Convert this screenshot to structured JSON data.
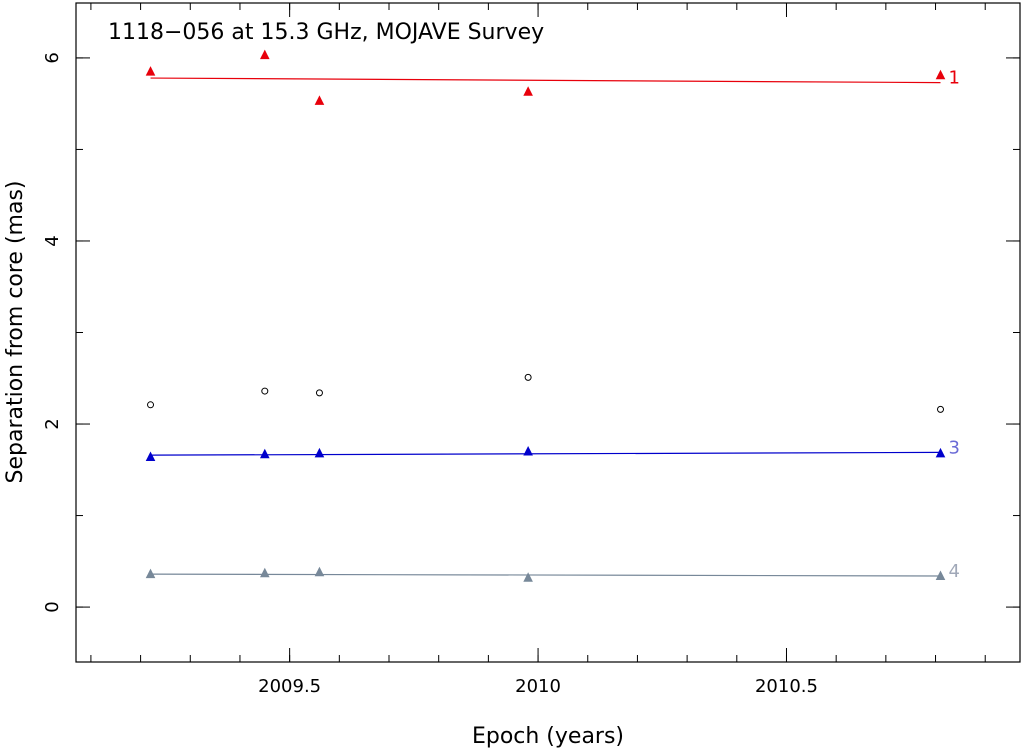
{
  "chart_data": {
    "type": "scatter",
    "title": "1118−056 at 15.3 GHz, MOJAVE Survey",
    "xlabel": "Epoch (years)",
    "ylabel": "Separation from core (mas)",
    "xlim": [
      2009.07,
      2010.97
    ],
    "ylim": [
      -0.6,
      6.6
    ],
    "x_major_ticks": [
      2009.5,
      2010,
      2010.5
    ],
    "x_tick_labels": [
      "2009.5",
      "2010",
      "2010.5"
    ],
    "x_minor_step": 0.1,
    "y_major_ticks": [
      0,
      2,
      4,
      6
    ],
    "y_tick_labels": [
      "0",
      "2",
      "4",
      "6"
    ],
    "y_minor_step": 1,
    "grid": false,
    "series": [
      {
        "name": "1",
        "marker": "triangle",
        "color": "#e8000b",
        "x": [
          2009.22,
          2009.45,
          2009.56,
          2009.98,
          2010.81
        ],
        "y": [
          5.85,
          6.03,
          5.53,
          5.63,
          5.81
        ],
        "fit": [
          [
            2009.22,
            5.78
          ],
          [
            2010.81,
            5.73
          ]
        ]
      },
      {
        "name": "3",
        "marker": "triangle",
        "color": "#0000cc",
        "label_color": "#6b6bd6",
        "x": [
          2009.22,
          2009.45,
          2009.56,
          2009.98,
          2010.81
        ],
        "y": [
          1.64,
          1.67,
          1.68,
          1.7,
          1.68
        ],
        "fit": [
          [
            2009.22,
            1.66
          ],
          [
            2010.81,
            1.69
          ]
        ]
      },
      {
        "name": "4",
        "marker": "triangle",
        "color": "#778899",
        "label_color": "#a0a8b8",
        "x": [
          2009.22,
          2009.45,
          2009.56,
          2009.98,
          2010.81
        ],
        "y": [
          0.36,
          0.37,
          0.38,
          0.32,
          0.34
        ],
        "fit": [
          [
            2009.22,
            0.36
          ],
          [
            2010.81,
            0.34
          ]
        ]
      },
      {
        "marker": "circle",
        "color": "#000000",
        "x": [
          2009.22,
          2009.45,
          2009.56,
          2009.98,
          2010.81
        ],
        "y": [
          2.21,
          2.36,
          2.34,
          2.51,
          2.16
        ]
      }
    ]
  }
}
